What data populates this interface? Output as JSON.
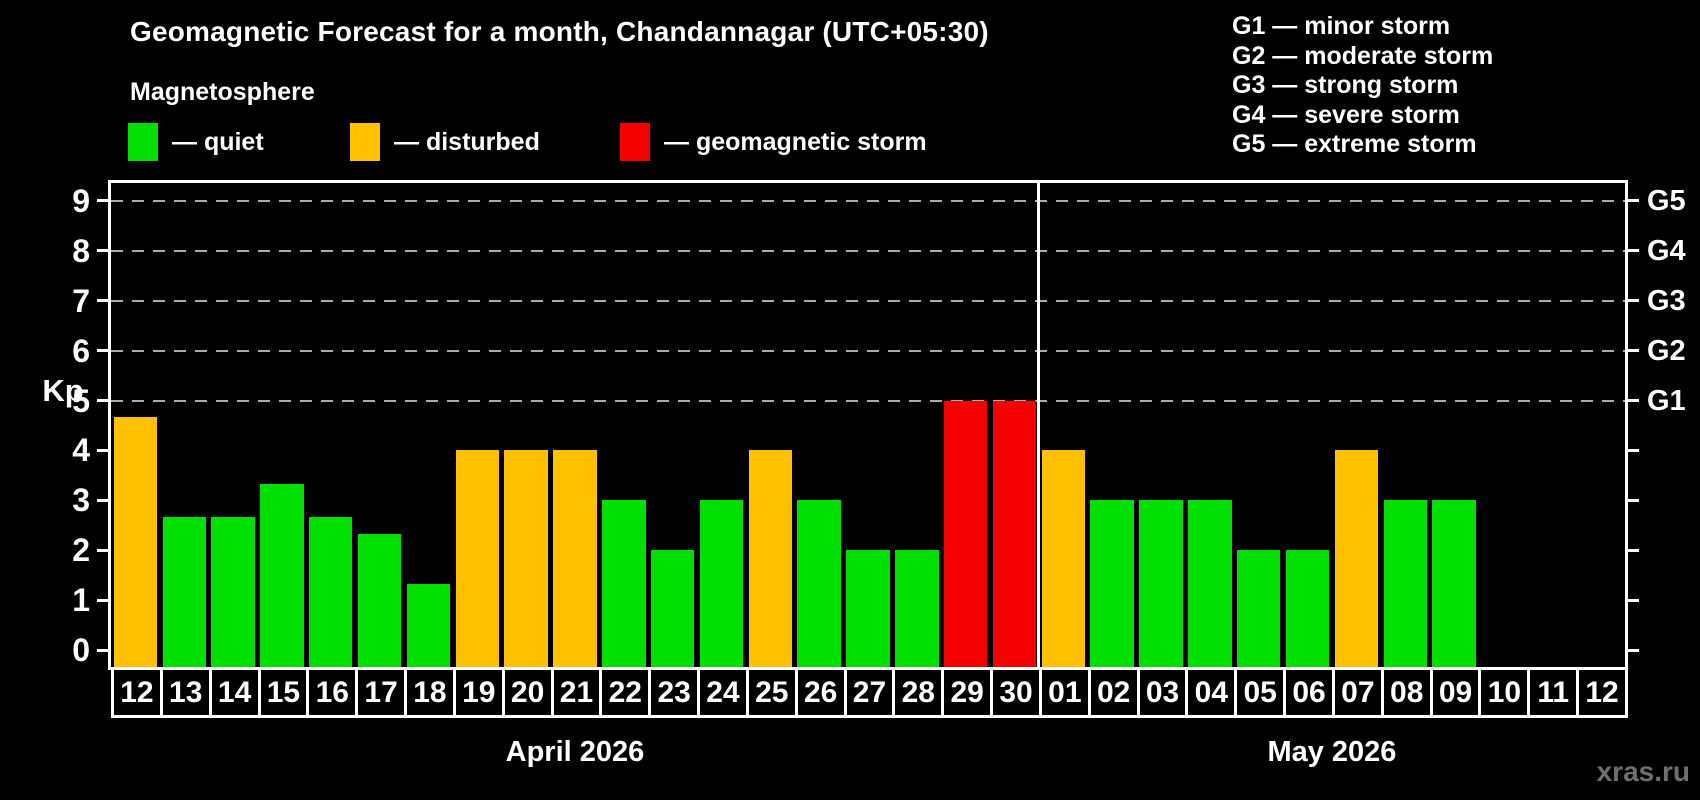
{
  "header": {
    "title": "Geomagnetic Forecast for a month, Chandannagar (UTC+05:30)",
    "subtitle": "Magnetosphere"
  },
  "legend": {
    "items": [
      {
        "key": "quiet",
        "label": "— quiet",
        "color": "#00e000"
      },
      {
        "key": "disturbed",
        "label": "— disturbed",
        "color": "#ffc000"
      },
      {
        "key": "storm",
        "label": "— geomagnetic storm",
        "color": "#f40000"
      }
    ]
  },
  "g_legend": [
    "G1 — minor storm",
    "G2 — moderate storm",
    "G3 — strong storm",
    "G4 — severe storm",
    "G5 — extreme storm"
  ],
  "watermark": "xras.ru",
  "chart_data": {
    "type": "bar",
    "ylabel": "Kp",
    "ylim": [
      -0.34,
      9.36
    ],
    "y_ticks": [
      0,
      1,
      2,
      3,
      4,
      5,
      6,
      7,
      8,
      9
    ],
    "grid": "dashed horizontal lines at Kp 5,6,7,8,9 only",
    "legend_position": "top-left",
    "status_colors": {
      "quiet": "#00e000",
      "disturbed": "#ffc000",
      "storm": "#f40000"
    },
    "g_levels": [
      {
        "kp": 5,
        "label": "G1"
      },
      {
        "kp": 6,
        "label": "G2"
      },
      {
        "kp": 7,
        "label": "G3"
      },
      {
        "kp": 8,
        "label": "G4"
      },
      {
        "kp": 9,
        "label": "G5"
      }
    ],
    "months": [
      {
        "label": "April 2026",
        "days": [
          {
            "date": "12",
            "kp": 4.67,
            "status": "disturbed"
          },
          {
            "date": "13",
            "kp": 2.67,
            "status": "quiet"
          },
          {
            "date": "14",
            "kp": 2.67,
            "status": "quiet"
          },
          {
            "date": "15",
            "kp": 3.33,
            "status": "quiet"
          },
          {
            "date": "16",
            "kp": 2.67,
            "status": "quiet"
          },
          {
            "date": "17",
            "kp": 2.33,
            "status": "quiet"
          },
          {
            "date": "18",
            "kp": 1.33,
            "status": "quiet"
          },
          {
            "date": "19",
            "kp": 4,
            "status": "disturbed"
          },
          {
            "date": "20",
            "kp": 4,
            "status": "disturbed"
          },
          {
            "date": "21",
            "kp": 4,
            "status": "disturbed"
          },
          {
            "date": "22",
            "kp": 3,
            "status": "quiet"
          },
          {
            "date": "23",
            "kp": 2,
            "status": "quiet"
          },
          {
            "date": "24",
            "kp": 3,
            "status": "quiet"
          },
          {
            "date": "25",
            "kp": 4,
            "status": "disturbed"
          },
          {
            "date": "26",
            "kp": 3,
            "status": "quiet"
          },
          {
            "date": "27",
            "kp": 2,
            "status": "quiet"
          },
          {
            "date": "28",
            "kp": 2,
            "status": "quiet"
          },
          {
            "date": "29",
            "kp": 5,
            "status": "storm"
          },
          {
            "date": "30",
            "kp": 5,
            "status": "storm"
          }
        ]
      },
      {
        "label": "May 2026",
        "days": [
          {
            "date": "01",
            "kp": 4,
            "status": "disturbed"
          },
          {
            "date": "02",
            "kp": 3,
            "status": "quiet"
          },
          {
            "date": "03",
            "kp": 3,
            "status": "quiet"
          },
          {
            "date": "04",
            "kp": 3,
            "status": "quiet"
          },
          {
            "date": "05",
            "kp": 2,
            "status": "quiet"
          },
          {
            "date": "06",
            "kp": 2,
            "status": "quiet"
          },
          {
            "date": "07",
            "kp": 4,
            "status": "disturbed"
          },
          {
            "date": "08",
            "kp": 3,
            "status": "quiet"
          },
          {
            "date": "09",
            "kp": 3,
            "status": "quiet"
          },
          {
            "date": "10",
            "kp": null,
            "status": "none"
          },
          {
            "date": "11",
            "kp": null,
            "status": "none"
          },
          {
            "date": "12",
            "kp": null,
            "status": "none"
          }
        ]
      }
    ]
  }
}
